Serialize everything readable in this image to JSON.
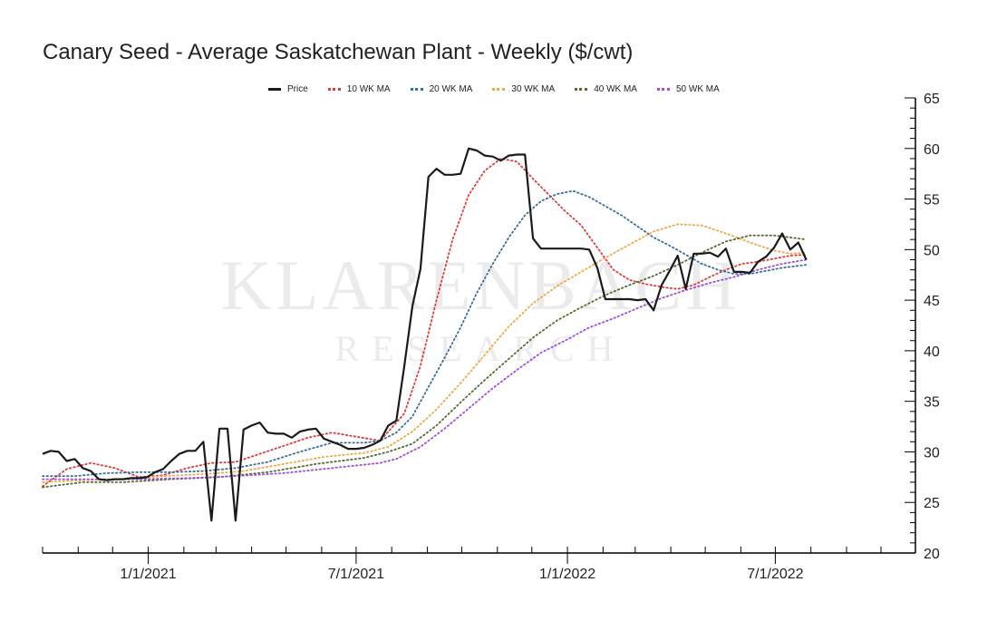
{
  "chart_data": {
    "type": "line",
    "title": "Canary Seed - Average Saskatchewan Plant - Weekly ($/cwt)",
    "xlabel": "",
    "ylabel": "",
    "x_range": [
      "2020-10-01",
      "2022-10-31"
    ],
    "ylim": [
      20,
      65
    ],
    "y_ticks": [
      "20",
      "25",
      "30",
      "35",
      "40",
      "45",
      "50",
      "55",
      "60",
      "65"
    ],
    "y_axis_side": "right",
    "x_ticks": [
      {
        "date": "2021-01-01",
        "label": "1/1/2021"
      },
      {
        "date": "2021-07-01",
        "label": "7/1/2021"
      },
      {
        "date": "2022-01-01",
        "label": "1/1/2022"
      },
      {
        "date": "2022-07-01",
        "label": "7/1/2022"
      }
    ],
    "grid": false,
    "legend_position": "top",
    "watermark": {
      "main": "KLARENBACH",
      "sub": "RESEARCH"
    },
    "series": [
      {
        "name": "Price",
        "color": "#1a1a1a",
        "style": "solid",
        "points": [
          [
            "2020-10-01",
            29.8
          ],
          [
            "2020-10-08",
            30.1
          ],
          [
            "2020-10-15",
            30.0
          ],
          [
            "2020-10-22",
            29.1
          ],
          [
            "2020-10-29",
            29.3
          ],
          [
            "2020-11-05",
            28.4
          ],
          [
            "2020-11-12",
            28.1
          ],
          [
            "2020-11-19",
            27.3
          ],
          [
            "2020-11-26",
            27.2
          ],
          [
            "2020-12-03",
            27.3
          ],
          [
            "2020-12-10",
            27.3
          ],
          [
            "2020-12-17",
            27.4
          ],
          [
            "2020-12-24",
            27.4
          ],
          [
            "2020-12-31",
            27.5
          ],
          [
            "2021-01-07",
            28.0
          ],
          [
            "2021-01-14",
            28.3
          ],
          [
            "2021-01-21",
            29.1
          ],
          [
            "2021-01-28",
            29.8
          ],
          [
            "2021-02-04",
            30.1
          ],
          [
            "2021-02-11",
            30.1
          ],
          [
            "2021-02-18",
            31.0
          ],
          [
            "2021-02-25",
            23.2
          ],
          [
            "2021-03-04",
            32.3
          ],
          [
            "2021-03-11",
            32.3
          ],
          [
            "2021-03-18",
            23.2
          ],
          [
            "2021-03-25",
            32.2
          ],
          [
            "2021-04-01",
            32.6
          ],
          [
            "2021-04-08",
            32.9
          ],
          [
            "2021-04-15",
            31.9
          ],
          [
            "2021-04-22",
            31.8
          ],
          [
            "2021-04-29",
            31.8
          ],
          [
            "2021-05-06",
            31.4
          ],
          [
            "2021-05-13",
            32.0
          ],
          [
            "2021-05-20",
            32.2
          ],
          [
            "2021-05-27",
            32.3
          ],
          [
            "2021-06-03",
            31.3
          ],
          [
            "2021-06-10",
            31.0
          ],
          [
            "2021-06-17",
            30.7
          ],
          [
            "2021-06-24",
            30.3
          ],
          [
            "2021-07-01",
            30.3
          ],
          [
            "2021-07-08",
            30.4
          ],
          [
            "2021-07-15",
            30.7
          ],
          [
            "2021-07-22",
            31.1
          ],
          [
            "2021-07-29",
            32.6
          ],
          [
            "2021-08-05",
            33.1
          ],
          [
            "2021-08-12",
            38.5
          ],
          [
            "2021-08-19",
            44.4
          ],
          [
            "2021-08-26",
            48.1
          ],
          [
            "2021-09-02",
            57.2
          ],
          [
            "2021-09-09",
            58.0
          ],
          [
            "2021-09-16",
            57.4
          ],
          [
            "2021-09-23",
            57.4
          ],
          [
            "2021-09-30",
            57.5
          ],
          [
            "2021-10-07",
            60.0
          ],
          [
            "2021-10-14",
            59.8
          ],
          [
            "2021-10-21",
            59.3
          ],
          [
            "2021-10-28",
            59.2
          ],
          [
            "2021-11-04",
            58.8
          ],
          [
            "2021-11-11",
            59.3
          ],
          [
            "2021-11-18",
            59.4
          ],
          [
            "2021-11-25",
            59.4
          ],
          [
            "2021-12-02",
            51.1
          ],
          [
            "2021-12-09",
            50.1
          ],
          [
            "2021-12-16",
            50.1
          ],
          [
            "2021-12-23",
            50.1
          ],
          [
            "2021-12-30",
            50.1
          ],
          [
            "2022-01-06",
            50.1
          ],
          [
            "2022-01-13",
            50.1
          ],
          [
            "2022-01-20",
            50.0
          ],
          [
            "2022-01-27",
            48.2
          ],
          [
            "2022-02-03",
            45.1
          ],
          [
            "2022-02-10",
            45.1
          ],
          [
            "2022-02-17",
            45.1
          ],
          [
            "2022-02-24",
            45.1
          ],
          [
            "2022-03-03",
            45.0
          ],
          [
            "2022-03-10",
            45.1
          ],
          [
            "2022-03-17",
            44.0
          ],
          [
            "2022-03-24",
            46.5
          ],
          [
            "2022-03-31",
            47.9
          ],
          [
            "2022-04-07",
            49.4
          ],
          [
            "2022-04-14",
            46.1
          ],
          [
            "2022-04-21",
            49.6
          ],
          [
            "2022-04-28",
            49.6
          ],
          [
            "2022-05-05",
            49.7
          ],
          [
            "2022-05-12",
            49.3
          ],
          [
            "2022-05-19",
            50.1
          ],
          [
            "2022-05-26",
            47.8
          ],
          [
            "2022-06-02",
            47.8
          ],
          [
            "2022-06-09",
            47.7
          ],
          [
            "2022-06-16",
            48.8
          ],
          [
            "2022-06-23",
            49.3
          ],
          [
            "2022-06-30",
            50.2
          ],
          [
            "2022-07-07",
            51.6
          ],
          [
            "2022-07-14",
            50.0
          ],
          [
            "2022-07-21",
            50.7
          ],
          [
            "2022-07-28",
            49.0
          ]
        ]
      },
      {
        "name": "10 WK MA",
        "color": "#e03c3c",
        "style": "dotted",
        "points": [
          [
            "2020-10-01",
            26.6
          ],
          [
            "2020-10-22",
            28.3
          ],
          [
            "2020-11-12",
            28.9
          ],
          [
            "2020-12-03",
            28.4
          ],
          [
            "2020-12-24",
            27.5
          ],
          [
            "2021-01-14",
            27.7
          ],
          [
            "2021-02-04",
            28.4
          ],
          [
            "2021-02-25",
            28.9
          ],
          [
            "2021-03-18",
            29.0
          ],
          [
            "2021-04-08",
            29.8
          ],
          [
            "2021-04-29",
            30.6
          ],
          [
            "2021-05-20",
            31.4
          ],
          [
            "2021-06-10",
            31.9
          ],
          [
            "2021-07-01",
            31.5
          ],
          [
            "2021-07-22",
            31.1
          ],
          [
            "2021-08-12",
            33.8
          ],
          [
            "2021-08-26",
            38.5
          ],
          [
            "2021-09-09",
            45.0
          ],
          [
            "2021-09-23",
            51.0
          ],
          [
            "2021-10-07",
            55.4
          ],
          [
            "2021-10-21",
            57.8
          ],
          [
            "2021-11-04",
            59.0
          ],
          [
            "2021-11-18",
            58.7
          ],
          [
            "2021-12-02",
            57.0
          ],
          [
            "2021-12-16",
            55.4
          ],
          [
            "2021-12-30",
            53.8
          ],
          [
            "2022-01-13",
            52.4
          ],
          [
            "2022-01-27",
            50.2
          ],
          [
            "2022-02-10",
            48.0
          ],
          [
            "2022-02-24",
            47.0
          ],
          [
            "2022-03-10",
            46.6
          ],
          [
            "2022-03-24",
            46.3
          ],
          [
            "2022-04-07",
            46.1
          ],
          [
            "2022-04-21",
            46.5
          ],
          [
            "2022-05-05",
            47.3
          ],
          [
            "2022-05-19",
            48.0
          ],
          [
            "2022-06-02",
            48.6
          ],
          [
            "2022-06-16",
            48.8
          ],
          [
            "2022-06-30",
            49.1
          ],
          [
            "2022-07-14",
            49.4
          ],
          [
            "2022-07-28",
            49.5
          ]
        ]
      },
      {
        "name": "20 WK MA",
        "color": "#3a6e9c",
        "style": "dotted",
        "points": [
          [
            "2020-10-01",
            27.6
          ],
          [
            "2020-10-29",
            27.6
          ],
          [
            "2020-11-26",
            27.9
          ],
          [
            "2020-12-24",
            28.0
          ],
          [
            "2021-01-21",
            28.0
          ],
          [
            "2021-02-18",
            28.1
          ],
          [
            "2021-03-18",
            28.4
          ],
          [
            "2021-04-15",
            29.0
          ],
          [
            "2021-05-13",
            30.0
          ],
          [
            "2021-06-10",
            30.9
          ],
          [
            "2021-07-08",
            30.9
          ],
          [
            "2021-07-22",
            31.1
          ],
          [
            "2021-08-05",
            31.9
          ],
          [
            "2021-08-19",
            33.5
          ],
          [
            "2021-09-02",
            36.4
          ],
          [
            "2021-09-16",
            39.3
          ],
          [
            "2021-09-30",
            42.3
          ],
          [
            "2021-10-14",
            45.7
          ],
          [
            "2021-10-28",
            48.6
          ],
          [
            "2021-11-11",
            51.2
          ],
          [
            "2021-11-25",
            53.4
          ],
          [
            "2021-12-09",
            54.8
          ],
          [
            "2021-12-23",
            55.5
          ],
          [
            "2022-01-06",
            55.8
          ],
          [
            "2022-01-20",
            55.2
          ],
          [
            "2022-02-03",
            54.3
          ],
          [
            "2022-02-17",
            53.4
          ],
          [
            "2022-03-03",
            52.3
          ],
          [
            "2022-03-17",
            51.2
          ],
          [
            "2022-03-31",
            50.4
          ],
          [
            "2022-04-14",
            49.5
          ],
          [
            "2022-04-28",
            48.6
          ],
          [
            "2022-05-12",
            48.0
          ],
          [
            "2022-05-26",
            47.6
          ],
          [
            "2022-06-09",
            47.6
          ],
          [
            "2022-06-23",
            47.9
          ],
          [
            "2022-07-07",
            48.2
          ],
          [
            "2022-07-28",
            48.5
          ]
        ]
      },
      {
        "name": "30 WK MA",
        "color": "#f0a84a",
        "style": "dotted",
        "points": [
          [
            "2020-10-01",
            27.0
          ],
          [
            "2020-11-05",
            27.2
          ],
          [
            "2020-12-10",
            27.3
          ],
          [
            "2021-01-14",
            27.6
          ],
          [
            "2021-02-18",
            27.8
          ],
          [
            "2021-03-25",
            28.1
          ],
          [
            "2021-04-29",
            28.8
          ],
          [
            "2021-06-03",
            29.5
          ],
          [
            "2021-07-08",
            29.9
          ],
          [
            "2021-07-29",
            30.5
          ],
          [
            "2021-08-19",
            32.0
          ],
          [
            "2021-09-09",
            34.2
          ],
          [
            "2021-09-30",
            36.8
          ],
          [
            "2021-10-21",
            39.6
          ],
          [
            "2021-11-11",
            42.4
          ],
          [
            "2021-12-02",
            44.7
          ],
          [
            "2021-12-23",
            46.4
          ],
          [
            "2022-01-13",
            47.8
          ],
          [
            "2022-02-03",
            49.2
          ],
          [
            "2022-02-24",
            50.5
          ],
          [
            "2022-03-17",
            51.8
          ],
          [
            "2022-04-07",
            52.5
          ],
          [
            "2022-04-28",
            52.4
          ],
          [
            "2022-05-19",
            51.6
          ],
          [
            "2022-06-09",
            50.7
          ],
          [
            "2022-06-30",
            49.9
          ],
          [
            "2022-07-14",
            49.6
          ],
          [
            "2022-07-28",
            49.7
          ]
        ]
      },
      {
        "name": "40 WK MA",
        "color": "#556b2f",
        "style": "dotted",
        "points": [
          [
            "2020-10-01",
            26.5
          ],
          [
            "2020-11-05",
            27.0
          ],
          [
            "2020-12-10",
            27.0
          ],
          [
            "2021-01-21",
            27.3
          ],
          [
            "2021-03-04",
            27.5
          ],
          [
            "2021-04-15",
            28.0
          ],
          [
            "2021-05-27",
            28.8
          ],
          [
            "2021-07-08",
            29.4
          ],
          [
            "2021-07-29",
            30.0
          ],
          [
            "2021-08-19",
            30.8
          ],
          [
            "2021-09-09",
            32.6
          ],
          [
            "2021-09-30",
            34.9
          ],
          [
            "2021-10-21",
            37.1
          ],
          [
            "2021-11-11",
            39.2
          ],
          [
            "2021-12-02",
            41.3
          ],
          [
            "2021-12-23",
            43.0
          ],
          [
            "2022-01-13",
            44.3
          ],
          [
            "2022-02-03",
            45.5
          ],
          [
            "2022-02-24",
            46.5
          ],
          [
            "2022-03-17",
            47.4
          ],
          [
            "2022-04-07",
            48.5
          ],
          [
            "2022-04-28",
            49.7
          ],
          [
            "2022-05-19",
            50.8
          ],
          [
            "2022-06-09",
            51.4
          ],
          [
            "2022-06-30",
            51.4
          ],
          [
            "2022-07-28",
            51.0
          ]
        ]
      },
      {
        "name": "50 WK MA",
        "color": "#a04ce0",
        "style": "dotted",
        "points": [
          [
            "2020-10-01",
            27.3
          ],
          [
            "2020-11-12",
            27.3
          ],
          [
            "2020-12-24",
            27.3
          ],
          [
            "2021-02-04",
            27.4
          ],
          [
            "2021-03-18",
            27.6
          ],
          [
            "2021-04-29",
            27.9
          ],
          [
            "2021-06-10",
            28.4
          ],
          [
            "2021-07-22",
            28.9
          ],
          [
            "2021-08-05",
            29.3
          ],
          [
            "2021-08-26",
            30.5
          ],
          [
            "2021-09-16",
            32.3
          ],
          [
            "2021-10-07",
            34.3
          ],
          [
            "2021-10-28",
            36.3
          ],
          [
            "2021-11-18",
            38.1
          ],
          [
            "2021-12-09",
            39.8
          ],
          [
            "2021-12-30",
            41.0
          ],
          [
            "2022-01-20",
            42.3
          ],
          [
            "2022-02-10",
            43.2
          ],
          [
            "2022-03-03",
            44.2
          ],
          [
            "2022-03-24",
            45.2
          ],
          [
            "2022-04-14",
            46.0
          ],
          [
            "2022-05-05",
            46.7
          ],
          [
            "2022-05-26",
            47.3
          ],
          [
            "2022-06-16",
            48.0
          ],
          [
            "2022-07-07",
            48.6
          ],
          [
            "2022-07-28",
            49.0
          ]
        ]
      }
    ]
  }
}
